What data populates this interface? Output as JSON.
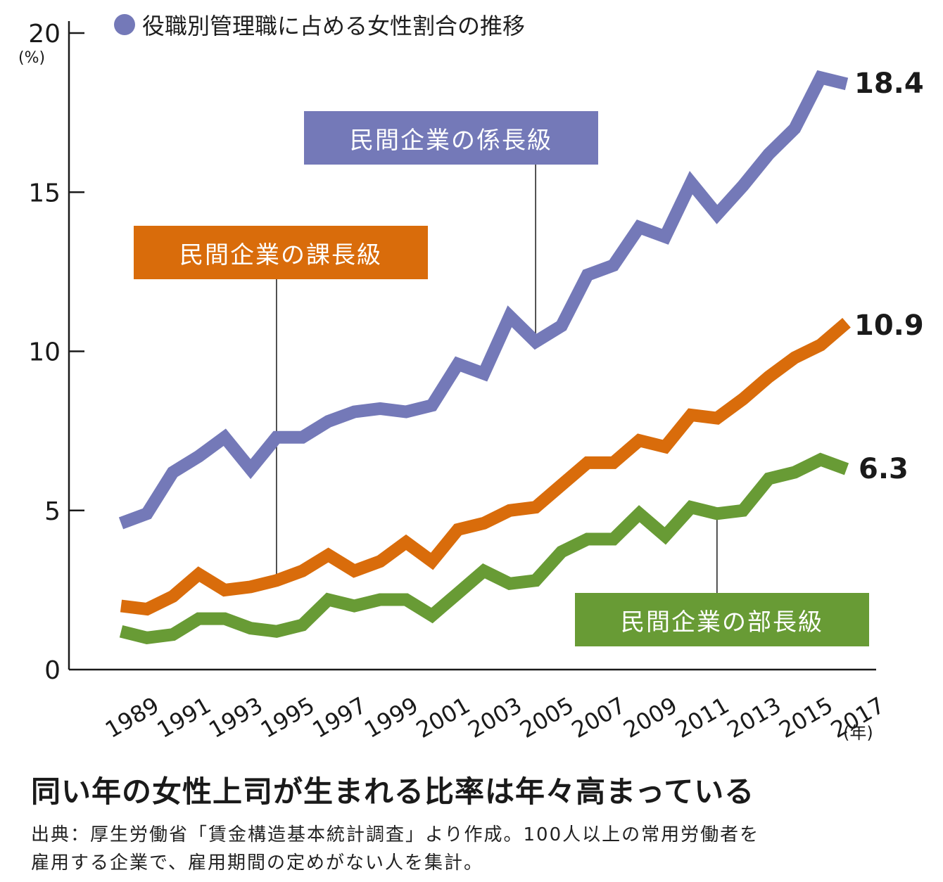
{
  "chart_data": {
    "type": "line",
    "title": "役職別管理職に占める女性割合の推移",
    "xlabel": "(年)",
    "ylabel": "(%)",
    "ylim": [
      0,
      20
    ],
    "yticks": [
      0,
      5,
      10,
      15,
      20
    ],
    "xlim": [
      1989,
      2017
    ],
    "xtick_labels": [
      "1989",
      "1991",
      "1993",
      "1995",
      "1997",
      "1999",
      "2001",
      "2003",
      "2005",
      "2007",
      "2009",
      "2011",
      "2013",
      "2015",
      "2017"
    ],
    "x": [
      1989,
      1990,
      1991,
      1992,
      1993,
      1994,
      1995,
      1996,
      1997,
      1998,
      1999,
      2000,
      2001,
      2002,
      2003,
      2004,
      2005,
      2006,
      2007,
      2008,
      2009,
      2010,
      2011,
      2012,
      2013,
      2014,
      2015,
      2016,
      2017
    ],
    "series": [
      {
        "name": "民間企業の係長級",
        "color": "#7479b8",
        "end_label": "18.4",
        "values": [
          4.6,
          4.9,
          6.2,
          6.7,
          7.3,
          6.3,
          7.3,
          7.3,
          7.8,
          8.1,
          8.2,
          8.1,
          8.3,
          9.6,
          9.3,
          11.1,
          10.3,
          10.8,
          12.4,
          12.7,
          13.9,
          13.6,
          15.3,
          14.3,
          15.2,
          16.2,
          17.0,
          18.6,
          18.4
        ]
      },
      {
        "name": "民間企業の課長級",
        "color": "#d96c0b",
        "end_label": "10.9",
        "values": [
          2.0,
          1.9,
          2.3,
          3.0,
          2.5,
          2.6,
          2.8,
          3.1,
          3.6,
          3.1,
          3.4,
          4.0,
          3.4,
          4.4,
          4.6,
          5.0,
          5.1,
          5.8,
          6.5,
          6.5,
          7.2,
          7.0,
          8.0,
          7.9,
          8.5,
          9.2,
          9.8,
          10.2,
          10.9
        ]
      },
      {
        "name": "民間企業の部長級",
        "color": "#689b35",
        "end_label": "6.3",
        "values": [
          1.2,
          1.0,
          1.1,
          1.6,
          1.6,
          1.3,
          1.2,
          1.4,
          2.2,
          2.0,
          2.2,
          2.2,
          1.7,
          2.4,
          3.1,
          2.7,
          2.8,
          3.7,
          4.1,
          4.1,
          4.9,
          4.2,
          5.1,
          4.9,
          5.0,
          6.0,
          6.2,
          6.6,
          6.3
        ]
      }
    ],
    "annotations": [
      {
        "series": "民間企業の係長級",
        "points_to_year": 2005
      },
      {
        "series": "民間企業の課長級",
        "points_to_year": 1995
      },
      {
        "series": "民間企業の部長級",
        "points_to_year": 2012
      }
    ],
    "grid": false,
    "legend": "top-left"
  },
  "legend_title": "役職別管理職に占める女性割合の推移",
  "unit_pct": "(%)",
  "unit_year": "(年)",
  "labels": {
    "kakari": "民間企業の係長級",
    "ka": "民間企業の課長級",
    "bu": "民間企業の部長級"
  },
  "end_labels": {
    "kakari": "18.4",
    "ka": "10.9",
    "bu": "6.3"
  },
  "headline": "同い年の女性上司が生まれる比率は年々高まっている",
  "note_line1": "出典：厚生労働省「賃金構造基本統計調査」より作成。100人以上の常用労働者を",
  "note_line2": "雇用する企業で、雇用期間の定めがない人を集計。"
}
